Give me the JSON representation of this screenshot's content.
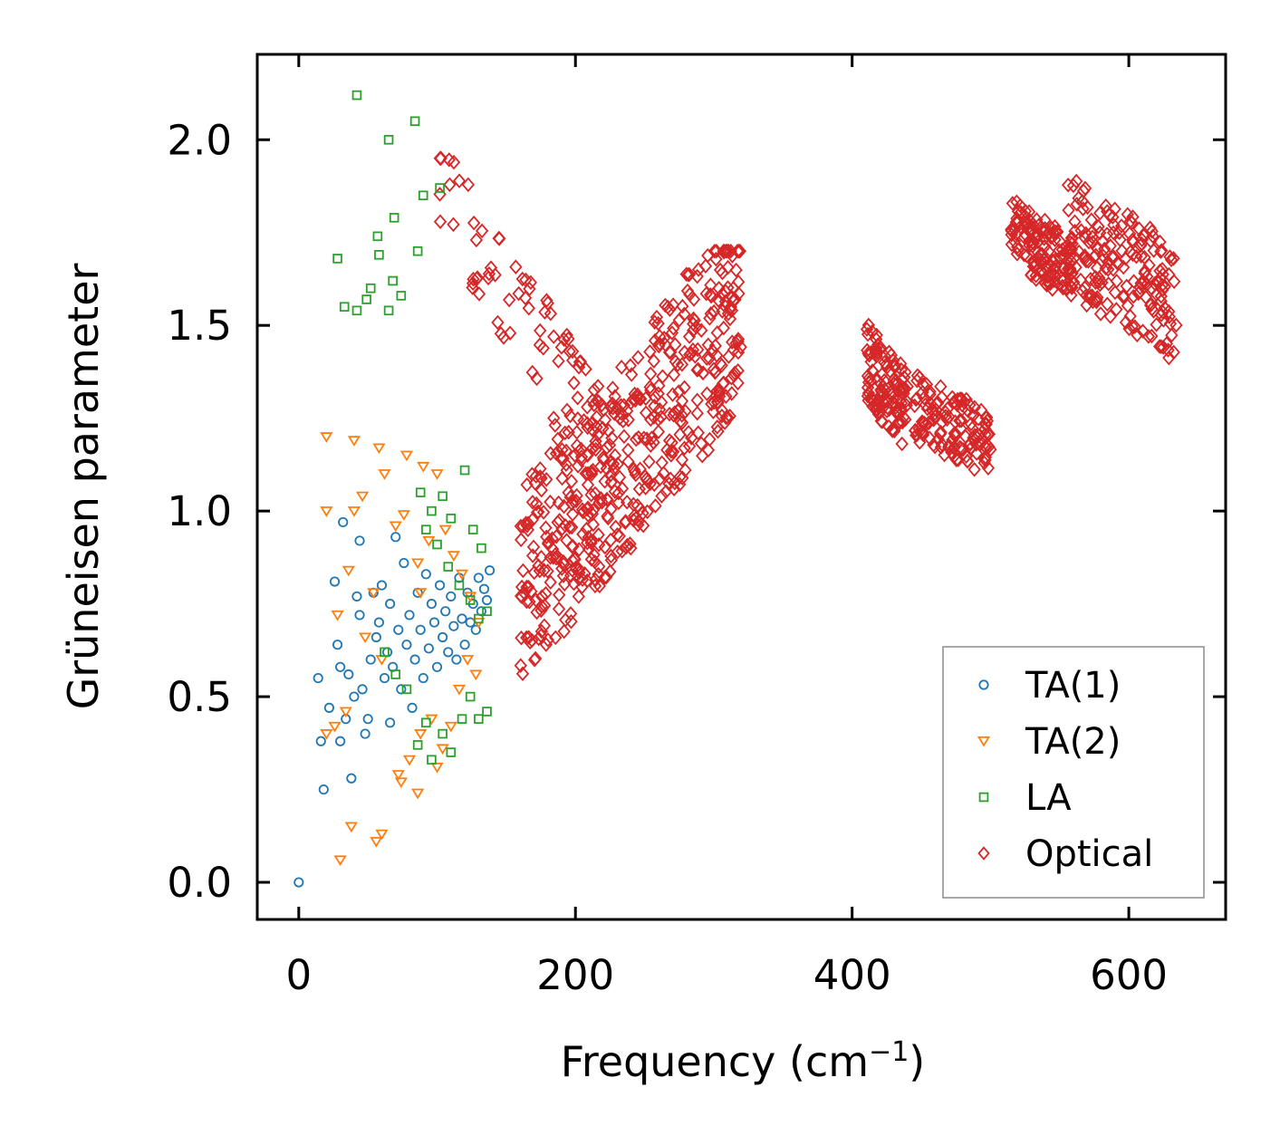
{
  "chart_data": {
    "type": "scatter",
    "title": "",
    "xlabel": "Frequency (cm",
    "xlabel_sup": "−1",
    "xlabel_end": ")",
    "ylabel": "Grüneisen parameter",
    "xlim": [
      -30,
      670
    ],
    "ylim": [
      -0.1,
      2.23
    ],
    "xticks": [
      0,
      200,
      400,
      600
    ],
    "xtick_labels": [
      "0",
      "200",
      "400",
      "600"
    ],
    "yticks": [
      0.0,
      0.5,
      1.0,
      1.5,
      2.0
    ],
    "ytick_labels": [
      "0.0",
      "0.5",
      "1.0",
      "1.5",
      "2.0"
    ],
    "grid": false,
    "legend_position": "bottom-right",
    "series": [
      {
        "name": "TA(1)",
        "marker": "circle",
        "color": "#1f77b4",
        "points": [
          [
            0,
            0.0
          ],
          [
            16,
            0.38
          ],
          [
            18,
            0.25
          ],
          [
            14,
            0.55
          ],
          [
            22,
            0.47
          ],
          [
            26,
            0.81
          ],
          [
            28,
            0.64
          ],
          [
            30,
            0.58
          ],
          [
            32,
            0.97
          ],
          [
            30,
            0.38
          ],
          [
            34,
            0.44
          ],
          [
            36,
            0.56
          ],
          [
            38,
            0.28
          ],
          [
            40,
            0.5
          ],
          [
            42,
            0.77
          ],
          [
            44,
            0.72
          ],
          [
            44,
            0.92
          ],
          [
            46,
            0.52
          ],
          [
            48,
            0.4
          ],
          [
            50,
            0.44
          ],
          [
            52,
            0.6
          ],
          [
            54,
            0.78
          ],
          [
            56,
            0.66
          ],
          [
            58,
            0.7
          ],
          [
            60,
            0.8
          ],
          [
            62,
            0.55
          ],
          [
            64,
            0.62
          ],
          [
            66,
            0.43
          ],
          [
            66,
            0.75
          ],
          [
            68,
            0.58
          ],
          [
            70,
            0.93
          ],
          [
            72,
            0.68
          ],
          [
            74,
            0.52
          ],
          [
            76,
            0.86
          ],
          [
            78,
            0.64
          ],
          [
            80,
            0.72
          ],
          [
            82,
            0.47
          ],
          [
            84,
            0.6
          ],
          [
            86,
            0.78
          ],
          [
            88,
            0.68
          ],
          [
            90,
            0.55
          ],
          [
            92,
            0.83
          ],
          [
            94,
            0.63
          ],
          [
            96,
            0.75
          ],
          [
            98,
            0.7
          ],
          [
            100,
            0.58
          ],
          [
            102,
            0.8
          ],
          [
            104,
            0.66
          ],
          [
            106,
            0.73
          ],
          [
            108,
            0.62
          ],
          [
            110,
            0.77
          ],
          [
            112,
            0.69
          ],
          [
            114,
            0.6
          ],
          [
            116,
            0.82
          ],
          [
            118,
            0.71
          ],
          [
            120,
            0.64
          ],
          [
            122,
            0.78
          ],
          [
            124,
            0.7
          ],
          [
            126,
            0.75
          ],
          [
            128,
            0.68
          ],
          [
            130,
            0.82
          ],
          [
            132,
            0.73
          ],
          [
            134,
            0.79
          ],
          [
            136,
            0.76
          ],
          [
            138,
            0.84
          ]
        ]
      },
      {
        "name": "TA(2)",
        "marker": "triangle-down",
        "color": "#ff7f0e",
        "points": [
          [
            20,
            1.2
          ],
          [
            40,
            1.19
          ],
          [
            58,
            1.17
          ],
          [
            78,
            1.15
          ],
          [
            62,
            1.1
          ],
          [
            90,
            1.12
          ],
          [
            46,
            1.04
          ],
          [
            20,
            1.0
          ],
          [
            40,
            1.0
          ],
          [
            28,
            0.72
          ],
          [
            36,
            0.84
          ],
          [
            48,
            0.66
          ],
          [
            54,
            0.78
          ],
          [
            60,
            0.6
          ],
          [
            70,
            0.96
          ],
          [
            76,
            0.99
          ],
          [
            86,
            0.86
          ],
          [
            88,
            0.78
          ],
          [
            94,
            0.92
          ],
          [
            100,
            1.1
          ],
          [
            106,
            0.95
          ],
          [
            112,
            0.88
          ],
          [
            118,
            0.83
          ],
          [
            124,
            0.77
          ],
          [
            130,
            0.7
          ],
          [
            20,
            0.4
          ],
          [
            26,
            0.42
          ],
          [
            34,
            0.46
          ],
          [
            38,
            0.15
          ],
          [
            30,
            0.06
          ],
          [
            56,
            0.11
          ],
          [
            60,
            0.13
          ],
          [
            72,
            0.29
          ],
          [
            74,
            0.27
          ],
          [
            80,
            0.33
          ],
          [
            86,
            0.24
          ],
          [
            88,
            0.4
          ],
          [
            96,
            0.44
          ],
          [
            100,
            0.31
          ],
          [
            104,
            0.36
          ],
          [
            110,
            0.42
          ],
          [
            116,
            0.52
          ],
          [
            122,
            0.6
          ],
          [
            128,
            0.56
          ]
        ]
      },
      {
        "name": "LA",
        "marker": "square",
        "color": "#2ca02c",
        "points": [
          [
            42,
            2.12
          ],
          [
            84,
            2.05
          ],
          [
            65,
            2.0
          ],
          [
            102,
            1.87
          ],
          [
            90,
            1.85
          ],
          [
            69,
            1.79
          ],
          [
            57,
            1.74
          ],
          [
            28,
            1.68
          ],
          [
            58,
            1.69
          ],
          [
            86,
            1.7
          ],
          [
            52,
            1.6
          ],
          [
            68,
            1.62
          ],
          [
            49,
            1.57
          ],
          [
            74,
            1.58
          ],
          [
            33,
            1.55
          ],
          [
            42,
            1.54
          ],
          [
            65,
            1.54
          ],
          [
            88,
            1.05
          ],
          [
            96,
            1.0
          ],
          [
            104,
            1.04
          ],
          [
            110,
            0.98
          ],
          [
            120,
            1.11
          ],
          [
            126,
            0.95
          ],
          [
            132,
            0.9
          ],
          [
            92,
            0.95
          ],
          [
            100,
            0.91
          ],
          [
            108,
            0.85
          ],
          [
            116,
            0.8
          ],
          [
            124,
            0.76
          ],
          [
            130,
            0.71
          ],
          [
            136,
            0.73
          ],
          [
            62,
            0.62
          ],
          [
            70,
            0.56
          ],
          [
            78,
            0.52
          ],
          [
            86,
            0.37
          ],
          [
            92,
            0.43
          ],
          [
            96,
            0.33
          ],
          [
            104,
            0.4
          ],
          [
            110,
            0.35
          ],
          [
            118,
            0.44
          ],
          [
            124,
            0.5
          ],
          [
            130,
            0.44
          ],
          [
            136,
            0.46
          ]
        ]
      },
      {
        "name": "Optical",
        "marker": "diamond",
        "color": "#d62728",
        "points": [],
        "clusters": [
          {
            "x_range": [
              160,
              320
            ],
            "y_range": [
              0.55,
              1.65
            ],
            "trend": "increasing",
            "count": 520
          },
          {
            "x_range": [
              100,
              215
            ],
            "y_range": [
              1.2,
              1.9
            ],
            "trend": "decreasing",
            "count": 70
          },
          {
            "x_range": [
              410,
              440
            ],
            "y_range": [
              1.15,
              1.52
            ],
            "trend": "band",
            "count": 110
          },
          {
            "x_range": [
              445,
              500
            ],
            "y_range": [
              1.08,
              1.38
            ],
            "trend": "band",
            "count": 130
          },
          {
            "x_range": [
              515,
              560
            ],
            "y_range": [
              1.55,
              1.85
            ],
            "trend": "band",
            "count": 130
          },
          {
            "x_range": [
              555,
              635
            ],
            "y_range": [
              1.38,
              1.92
            ],
            "trend": "band",
            "count": 190
          }
        ]
      }
    ]
  }
}
